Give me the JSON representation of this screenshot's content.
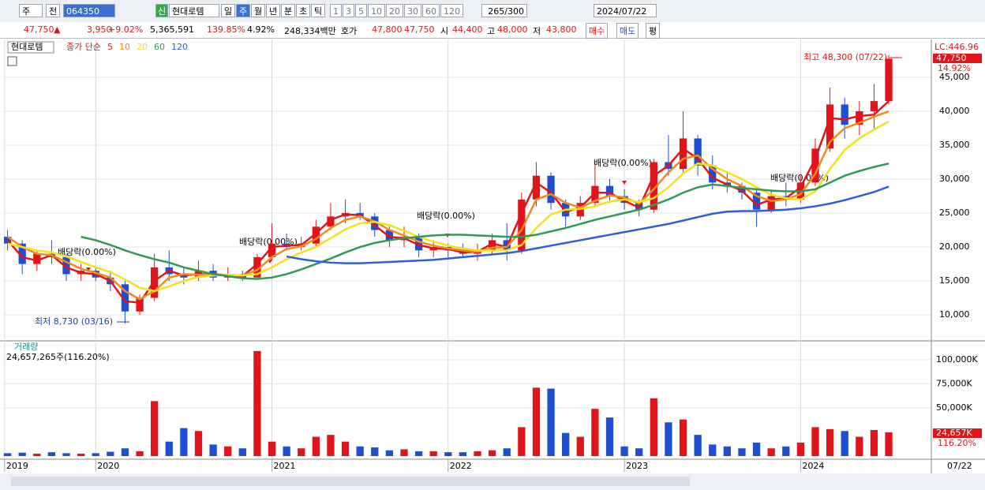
{
  "toolbar": {
    "market": "주",
    "prev": "전",
    "code": "064350",
    "badge": "신",
    "name": "현대로템",
    "periods": [
      "일",
      "주",
      "월",
      "년",
      "분",
      "초",
      "틱"
    ],
    "intervals": [
      "1",
      "3",
      "5",
      "10",
      "20",
      "30",
      "60",
      "120"
    ],
    "count": "265",
    "max": "/300",
    "date": "2024/07/22"
  },
  "quote": {
    "price": "47,750",
    "arrow": "▲",
    "change": "3,950",
    "change_pct": "+9.02%",
    "volume": "5,365,591",
    "volume_ratio": "139.85%",
    "turnover": "4.92%",
    "amount": "248,334백만",
    "bid_label": "호가",
    "ask": "47,800",
    "bid": "47,750",
    "open_label": "시",
    "open": "44,400",
    "high_label": "고",
    "high": "48,000",
    "low_label": "저",
    "low": "43,800",
    "buy": "매수",
    "sell": "매도",
    "avg": "평"
  },
  "chart_data": [
    {
      "type": "candlestick",
      "name": "현대로템",
      "legend_title": "종가 단순",
      "up_color": "#e0151b",
      "down_color": "#1f4fd0",
      "lc_label": "LC:446.96",
      "last_label": "47,750",
      "last_pct": "14.92%",
      "annotations": {
        "high": "최고 48,300 (07/22)",
        "low": "최저 8,730 (03/16)",
        "dividends": [
          "배당락(0.00%)",
          "배당락(0.00%)",
          "배당락(0.00%)",
          "배당락(0.00%)",
          "배당락(0.00%)"
        ]
      },
      "xlim": [
        -0.3,
        62.9
      ],
      "ylim": [
        6400,
        50350
      ],
      "yticks": [
        {
          "value": 10000,
          "label": "10,000"
        },
        {
          "value": 15000,
          "label": "15,000"
        },
        {
          "value": 20000,
          "label": "20,000"
        },
        {
          "value": 25000,
          "label": "25,000"
        },
        {
          "value": 30000,
          "label": "30,000"
        },
        {
          "value": 35000,
          "label": "35,000"
        },
        {
          "value": 40000,
          "label": "40,000"
        },
        {
          "value": 45000,
          "label": "45,000"
        }
      ],
      "open": [
        21500,
        20500,
        17500,
        19000,
        18500,
        16000,
        16500,
        15500,
        14500,
        10500,
        12500,
        17000,
        16000,
        15500,
        16500,
        15500,
        16000,
        15500,
        18500,
        20500,
        20000,
        20500,
        23000,
        24500,
        25000,
        24500,
        22500,
        21000,
        21500,
        19500,
        20000,
        19500,
        19000,
        19500,
        21000,
        19500,
        27000,
        30500,
        26500,
        24500,
        26500,
        29000,
        27500,
        26500,
        25500,
        32500,
        31500,
        36000,
        32000,
        29500,
        29000,
        28000,
        25500,
        27500,
        27000,
        29500,
        34500,
        41000,
        38000,
        40000,
        41500
      ],
      "high": [
        22500,
        21000,
        19500,
        21000,
        19000,
        17500,
        17000,
        16500,
        15000,
        13000,
        19000,
        19500,
        17000,
        18000,
        17500,
        17000,
        16500,
        19000,
        23500,
        22000,
        21500,
        24000,
        26500,
        27000,
        26500,
        25000,
        23000,
        23000,
        22000,
        21000,
        20500,
        20500,
        20500,
        22000,
        23500,
        28000,
        32500,
        31000,
        27000,
        27500,
        32500,
        30000,
        28500,
        27000,
        33000,
        36500,
        40000,
        36500,
        33500,
        31000,
        29500,
        28500,
        28500,
        29500,
        30500,
        36000,
        43500,
        42000,
        41500,
        44000,
        48300
      ],
      "low": [
        19500,
        16000,
        16500,
        17500,
        15000,
        15000,
        15000,
        13500,
        8730,
        10000,
        12000,
        15000,
        14500,
        15000,
        15000,
        15000,
        15000,
        15500,
        18000,
        19500,
        19500,
        20000,
        22500,
        23500,
        24000,
        21500,
        20000,
        20000,
        18500,
        18500,
        18500,
        18500,
        18000,
        19000,
        18000,
        19000,
        26000,
        25500,
        23000,
        24000,
        26000,
        26500,
        25500,
        24500,
        25000,
        30500,
        31000,
        30500,
        28500,
        28000,
        27000,
        23000,
        25000,
        26000,
        26500,
        29000,
        34000,
        36000,
        36500,
        37500,
        41000
      ],
      "close": [
        20500,
        17500,
        19000,
        18500,
        16000,
        16500,
        15500,
        14500,
        10500,
        12500,
        17000,
        16000,
        15500,
        16500,
        15500,
        16000,
        15500,
        18500,
        20500,
        20000,
        20500,
        23000,
        24500,
        25000,
        24500,
        22500,
        21000,
        21500,
        19500,
        20000,
        19500,
        19000,
        19500,
        21000,
        19500,
        27000,
        30500,
        26500,
        24500,
        26500,
        29000,
        27500,
        26500,
        25500,
        32500,
        31500,
        36000,
        32000,
        29500,
        29000,
        28000,
        25500,
        27500,
        27000,
        29500,
        34500,
        41000,
        38000,
        40000,
        41500,
        47750
      ],
      "series": [
        {
          "name": "5",
          "color": "#e0151b",
          "values": [
            21000,
            18500,
            18000,
            18800,
            17000,
            16200,
            16000,
            15000,
            12000,
            11800,
            15000,
            16500,
            15800,
            16000,
            16000,
            15800,
            15700,
            17500,
            20000,
            20200,
            20300,
            22000,
            24000,
            24800,
            24700,
            23200,
            21500,
            21300,
            20300,
            19800,
            19700,
            19200,
            19300,
            20500,
            20000,
            25000,
            29500,
            28000,
            25200,
            25800,
            28000,
            28000,
            26800,
            25800,
            30500,
            32000,
            34500,
            33000,
            30200,
            29200,
            28300,
            26200,
            27000,
            27200,
            28800,
            33000,
            39000,
            38800,
            39300,
            39500,
            41500
          ]
        },
        {
          "name": "10",
          "color": "#f08a1c",
          "values": [
            21500,
            20000,
            19000,
            18800,
            17800,
            16800,
            16200,
            15500,
            13500,
            12300,
            13500,
            15500,
            16000,
            15900,
            16000,
            15900,
            15800,
            16600,
            18500,
            19700,
            20100,
            21200,
            22800,
            24000,
            24500,
            23800,
            22500,
            21700,
            20800,
            20200,
            19800,
            19500,
            19300,
            19900,
            20000,
            22500,
            27000,
            27800,
            26500,
            25800,
            26800,
            27600,
            27300,
            26400,
            28500,
            31000,
            33000,
            33500,
            31500,
            30000,
            29000,
            27500,
            26800,
            27000,
            27800,
            30800,
            35500,
            37500,
            38300,
            39200,
            40000
          ]
        },
        {
          "name": "20",
          "color": "#f2e21a",
          "values": [
            20500,
            20000,
            19500,
            19200,
            18600,
            17800,
            17000,
            16300,
            15200,
            14000,
            13500,
            14200,
            15000,
            15600,
            15800,
            15900,
            15800,
            16000,
            17000,
            18200,
            19200,
            20000,
            21300,
            22600,
            23500,
            23700,
            23200,
            22400,
            21500,
            20800,
            20200,
            19800,
            19500,
            19500,
            19500,
            20300,
            22800,
            24800,
            25500,
            25600,
            26000,
            26700,
            27000,
            26600,
            27200,
            28800,
            30800,
            32300,
            32000,
            31000,
            30000,
            28800,
            27700,
            27200,
            27000,
            28200,
            31500,
            34300,
            36000,
            37300,
            38500
          ]
        },
        {
          "name": "60",
          "color": "#2e9a55",
          "values": [
            null,
            null,
            null,
            null,
            null,
            21500,
            21000,
            20300,
            19500,
            18800,
            18200,
            17700,
            17000,
            16500,
            16000,
            15700,
            15400,
            15300,
            15500,
            16000,
            16700,
            17500,
            18300,
            19200,
            20000,
            20600,
            21000,
            21300,
            21500,
            21700,
            21800,
            21800,
            21700,
            21600,
            21500,
            21500,
            21800,
            22300,
            22800,
            23400,
            24000,
            24500,
            25000,
            25500,
            26200,
            27000,
            28000,
            28800,
            29200,
            29000,
            28700,
            28500,
            28300,
            28200,
            28200,
            28500,
            29500,
            30500,
            31200,
            31800,
            32300
          ]
        },
        {
          "name": "120",
          "color": "#2f5fd8",
          "values": [
            null,
            null,
            null,
            null,
            null,
            null,
            null,
            null,
            null,
            null,
            null,
            null,
            null,
            null,
            null,
            null,
            null,
            null,
            null,
            18600,
            18200,
            17900,
            17700,
            17600,
            17600,
            17700,
            17800,
            17900,
            18000,
            18100,
            18300,
            18500,
            18700,
            18900,
            19100,
            19400,
            19800,
            20200,
            20600,
            21000,
            21400,
            21800,
            22200,
            22600,
            23000,
            23400,
            23900,
            24400,
            24900,
            25200,
            25300,
            25300,
            25400,
            25500,
            25700,
            26000,
            26400,
            26900,
            27500,
            28100,
            28900
          ]
        }
      ]
    },
    {
      "type": "bar",
      "title": "거래량",
      "subtitle": "24,657,265주(116.20%)",
      "last_label": "24,657K",
      "last_pct": "116.20%",
      "x_end_label": "07/22",
      "xlim": [
        -0.3,
        62.9
      ],
      "ylim": [
        0,
        113000
      ],
      "yticks": [
        {
          "value": 50000,
          "label": "50,000K"
        },
        {
          "value": 75000,
          "label": "75,000K"
        },
        {
          "value": 100000,
          "label": "100,000K"
        }
      ],
      "xticks": [
        {
          "value": -0.2,
          "label": "2019"
        },
        {
          "value": 6,
          "label": "2020"
        },
        {
          "value": 18,
          "label": "2021"
        },
        {
          "value": 30,
          "label": "2022"
        },
        {
          "value": 42,
          "label": "2023"
        },
        {
          "value": 54,
          "label": "2024"
        }
      ],
      "values": [
        3000,
        3500,
        2500,
        4000,
        3000,
        2500,
        3000,
        4500,
        8000,
        5000,
        57000,
        15000,
        29000,
        26000,
        12000,
        10000,
        8000,
        109000,
        15000,
        10000,
        8000,
        20000,
        22000,
        15000,
        10000,
        9000,
        6000,
        7000,
        5000,
        5000,
        4000,
        4000,
        5000,
        6000,
        8000,
        30000,
        71000,
        70000,
        24000,
        20000,
        49000,
        40000,
        10000,
        8000,
        60000,
        35000,
        38000,
        22000,
        12000,
        10000,
        8000,
        14000,
        8000,
        10000,
        14000,
        30000,
        28000,
        26000,
        20000,
        27000,
        24657
      ]
    }
  ]
}
